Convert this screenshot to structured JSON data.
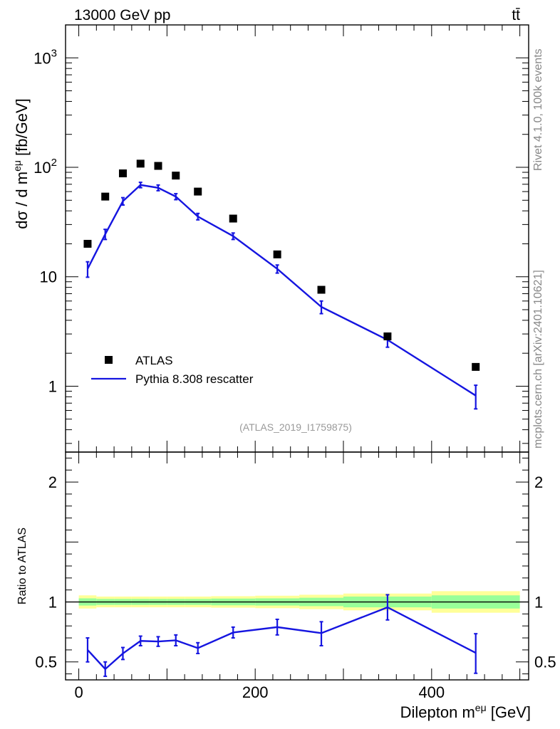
{
  "header": {
    "left": "13000 GeV pp",
    "right": "tt̄"
  },
  "side_labels": {
    "top": "Rivet 4.1.0,  100k events",
    "bottom": "mcplots.cern.ch [arXiv:2401.10621]"
  },
  "analysis_ref": "(ATLAS_2019_I1759875)",
  "legend": {
    "data_label": "ATLAS",
    "mc_label": "Pythia 8.308 rescatter"
  },
  "colors": {
    "mc": "#1515e0",
    "data": "#000000",
    "band_inner": "#99ff99",
    "band_outer": "#ffff99"
  },
  "chart_data": [
    {
      "type": "scatter",
      "panel": "main",
      "ylabel": "dσ / d m^{eμ} [fb/GeV]",
      "yscale": "log",
      "ylim": [
        0.25,
        2000
      ],
      "xlim": [
        -15,
        510
      ],
      "ytick_labels": [
        {
          "value": 1,
          "label": "1"
        },
        {
          "value": 10,
          "label": "10"
        },
        {
          "value": 100,
          "label": "10",
          "exp": "2"
        },
        {
          "value": 1000,
          "label": "10",
          "exp": "3"
        }
      ],
      "bins": [
        [
          0,
          20
        ],
        [
          20,
          40
        ],
        [
          40,
          60
        ],
        [
          60,
          80
        ],
        [
          80,
          100
        ],
        [
          100,
          120
        ],
        [
          120,
          150
        ],
        [
          150,
          200
        ],
        [
          200,
          250
        ],
        [
          250,
          300
        ],
        [
          300,
          400
        ],
        [
          400,
          500
        ]
      ],
      "x": [
        10,
        30,
        50,
        70,
        90,
        110,
        135,
        175,
        225,
        275,
        350,
        450
      ],
      "series": [
        {
          "name": "ATLAS",
          "style": "markers",
          "values": [
            20,
            54,
            88,
            108,
            103,
            84,
            60,
            34,
            16,
            7.6,
            2.85,
            1.5
          ]
        },
        {
          "name": "Pythia 8.308 rescatter",
          "style": "line",
          "values": [
            11.8,
            24.5,
            49,
            69,
            65,
            54,
            35.5,
            23.5,
            11.8,
            5.3,
            2.65,
            0.82
          ],
          "err_low": [
            1.9,
            2.6,
            3.8,
            3.9,
            3.9,
            3.4,
            2.4,
            1.6,
            1.0,
            0.7,
            0.38,
            0.2
          ],
          "err_high": [
            1.9,
            2.6,
            3.8,
            3.9,
            3.9,
            3.4,
            2.4,
            1.6,
            1.0,
            0.7,
            0.38,
            0.2
          ]
        }
      ]
    },
    {
      "type": "line",
      "panel": "ratio",
      "ylabel": "Ratio to ATLAS",
      "xlabel": "Dilepton m^{eμ} [GeV]",
      "ylim": [
        0.35,
        2.25
      ],
      "xlim": [
        -15,
        510
      ],
      "xticks": [
        0,
        200,
        400
      ],
      "yticks": [
        0.5,
        1,
        2
      ],
      "ytick_labels": [
        "0.5",
        "1",
        "2"
      ],
      "bins": [
        [
          0,
          20
        ],
        [
          20,
          40
        ],
        [
          40,
          60
        ],
        [
          60,
          80
        ],
        [
          80,
          100
        ],
        [
          100,
          120
        ],
        [
          120,
          150
        ],
        [
          150,
          200
        ],
        [
          200,
          250
        ],
        [
          250,
          300
        ],
        [
          300,
          400
        ],
        [
          400,
          500
        ]
      ],
      "x": [
        10,
        30,
        50,
        70,
        90,
        110,
        135,
        175,
        225,
        275,
        350,
        450
      ],
      "band_inner_halfwidth": [
        0.03,
        0.025,
        0.025,
        0.025,
        0.025,
        0.025,
        0.025,
        0.028,
        0.03,
        0.035,
        0.045,
        0.055
      ],
      "band_outer_halfwidth": [
        0.055,
        0.045,
        0.045,
        0.045,
        0.045,
        0.045,
        0.045,
        0.048,
        0.052,
        0.06,
        0.07,
        0.09
      ],
      "series": [
        {
          "name": "Pythia 8.308 rescatter",
          "values": [
            0.6,
            0.44,
            0.57,
            0.675,
            0.67,
            0.68,
            0.615,
            0.745,
            0.79,
            0.74,
            0.955,
            0.575
          ],
          "err_low": [
            0.1,
            0.06,
            0.05,
            0.04,
            0.04,
            0.045,
            0.045,
            0.045,
            0.065,
            0.105,
            0.105,
            0.17
          ],
          "err_high": [
            0.1,
            0.06,
            0.05,
            0.04,
            0.04,
            0.045,
            0.045,
            0.045,
            0.065,
            0.095,
            0.105,
            0.16
          ]
        }
      ]
    }
  ]
}
